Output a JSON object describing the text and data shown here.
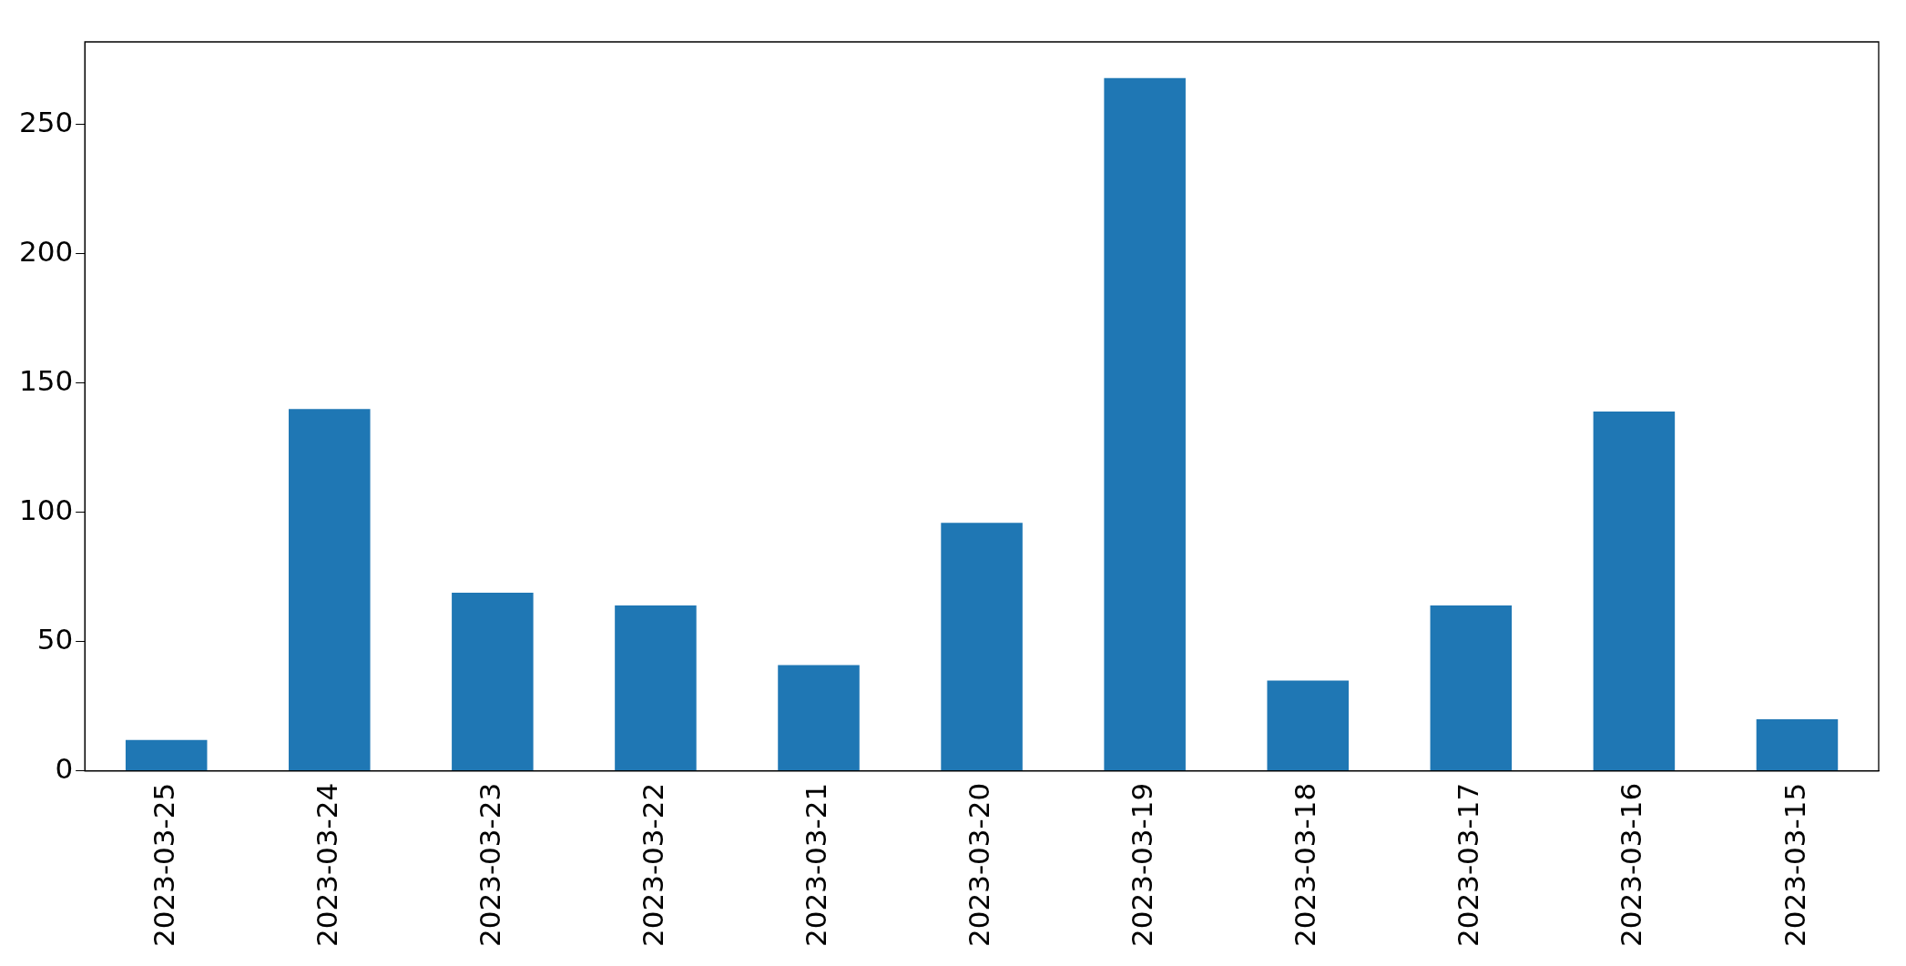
{
  "chart_data": {
    "type": "bar",
    "categories": [
      "2023-03-25",
      "2023-03-24",
      "2023-03-23",
      "2023-03-22",
      "2023-03-21",
      "2023-03-20",
      "2023-03-19",
      "2023-03-18",
      "2023-03-17",
      "2023-03-16",
      "2023-03-15"
    ],
    "values": [
      12,
      140,
      69,
      64,
      41,
      96,
      268,
      35,
      64,
      139,
      20
    ],
    "color": "#1f77b4",
    "ylim": [
      0,
      282
    ],
    "yticks": [
      0,
      50,
      100,
      150,
      200,
      250
    ],
    "grid": false,
    "legend": false
  }
}
